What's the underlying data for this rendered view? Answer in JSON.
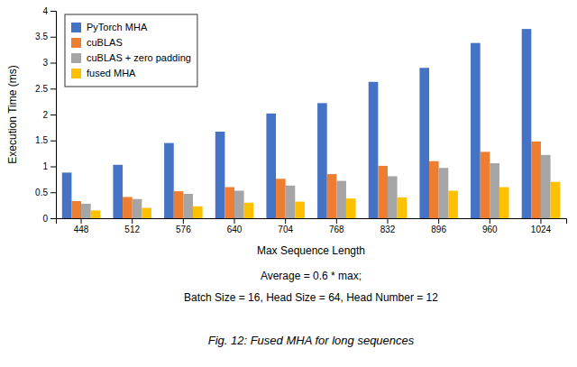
{
  "chart_data": {
    "type": "bar",
    "categories": [
      448,
      512,
      576,
      640,
      704,
      768,
      832,
      896,
      960,
      1024
    ],
    "series": [
      {
        "name": "PyTorch MHA",
        "color": "#4472C4",
        "values": [
          0.88,
          1.03,
          1.45,
          1.67,
          2.02,
          2.22,
          2.63,
          2.9,
          3.38,
          3.65
        ]
      },
      {
        "name": "cuBLAS",
        "color": "#ED7D31",
        "values": [
          0.33,
          0.41,
          0.52,
          0.6,
          0.76,
          0.85,
          1.01,
          1.1,
          1.28,
          1.48
        ]
      },
      {
        "name": "cuBLAS + zero padding",
        "color": "#A5A5A5",
        "values": [
          0.28,
          0.37,
          0.47,
          0.53,
          0.63,
          0.72,
          0.81,
          0.97,
          1.06,
          1.22
        ]
      },
      {
        "name": "fused MHA",
        "color": "#FFC000",
        "values": [
          0.15,
          0.2,
          0.23,
          0.3,
          0.32,
          0.38,
          0.4,
          0.53,
          0.6,
          0.7
        ]
      }
    ],
    "xlabel": "Max Sequence Length",
    "ylabel": "Execution Time (ms)",
    "annotations": [
      "Average = 0.6 * max;",
      "Batch Size = 16, Head Size = 64, Head Number = 12",
      "Fig. 12: Fused MHA for long sequences"
    ],
    "ylim": [
      0,
      4
    ],
    "yticks": [
      0,
      0.5,
      1,
      1.5,
      2,
      2.5,
      3,
      3.5,
      4
    ],
    "grid": false,
    "legend": "upper left"
  }
}
